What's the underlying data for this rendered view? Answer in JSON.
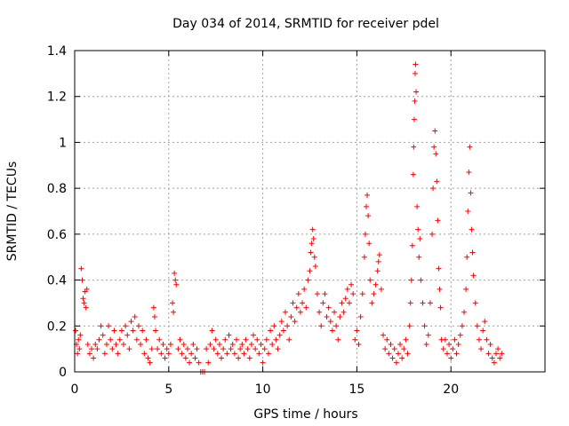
{
  "chart_data": {
    "type": "scatter",
    "title": "Day 034 of 2014, SRMTID for receiver pdel",
    "xlabel": "GPS time / hours",
    "ylabel": "SRMTID / TECUs",
    "xlim": [
      0,
      25
    ],
    "ylim": [
      0,
      1.4
    ],
    "xticks": [
      0,
      5,
      10,
      15,
      20
    ],
    "xtick_labels": [
      "0",
      "5",
      "10",
      "15",
      "20"
    ],
    "yticks": [
      0,
      0.2,
      0.4,
      0.6,
      0.8,
      1.0,
      1.2,
      1.4
    ],
    "ytick_labels": [
      "0",
      "0.2",
      "0.4",
      "0.6",
      "0.8",
      "1",
      "1.2",
      "1.4"
    ],
    "grid": true,
    "marker": "plus",
    "series": [
      {
        "name": "SRMTID",
        "color": "#ff0000",
        "points": [
          [
            0.05,
            0.18
          ],
          [
            0.1,
            0.12
          ],
          [
            0.15,
            0.08
          ],
          [
            0.2,
            0.14
          ],
          [
            0.25,
            0.1
          ],
          [
            0.3,
            0.16
          ],
          [
            0.35,
            0.45
          ],
          [
            0.4,
            0.4
          ],
          [
            0.45,
            0.32
          ],
          [
            0.5,
            0.3
          ],
          [
            0.55,
            0.35
          ],
          [
            0.6,
            0.28
          ],
          [
            0.65,
            0.36
          ],
          [
            0.7,
            0.12
          ],
          [
            0.8,
            0.08
          ],
          [
            0.9,
            0.1
          ],
          [
            1.0,
            0.06
          ],
          [
            1.1,
            0.12
          ],
          [
            1.2,
            0.1
          ],
          [
            1.3,
            0.14
          ],
          [
            1.4,
            0.2
          ],
          [
            1.5,
            0.16
          ],
          [
            1.6,
            0.08
          ],
          [
            1.7,
            0.12
          ],
          [
            1.8,
            0.2
          ],
          [
            1.9,
            0.14
          ],
          [
            2.0,
            0.1
          ],
          [
            2.1,
            0.18
          ],
          [
            2.2,
            0.12
          ],
          [
            2.3,
            0.08
          ],
          [
            2.4,
            0.14
          ],
          [
            2.5,
            0.18
          ],
          [
            2.6,
            0.12
          ],
          [
            2.7,
            0.2
          ],
          [
            2.8,
            0.16
          ],
          [
            2.9,
            0.1
          ],
          [
            3.0,
            0.22
          ],
          [
            3.1,
            0.18
          ],
          [
            3.2,
            0.24
          ],
          [
            3.3,
            0.14
          ],
          [
            3.4,
            0.2
          ],
          [
            3.5,
            0.12
          ],
          [
            3.6,
            0.18
          ],
          [
            3.7,
            0.08
          ],
          [
            3.8,
            0.14
          ],
          [
            3.9,
            0.06
          ],
          [
            4.0,
            0.04
          ],
          [
            4.1,
            0.1
          ],
          [
            4.2,
            0.28
          ],
          [
            4.25,
            0.24
          ],
          [
            4.3,
            0.18
          ],
          [
            4.4,
            0.1
          ],
          [
            4.5,
            0.14
          ],
          [
            4.6,
            0.08
          ],
          [
            4.7,
            0.12
          ],
          [
            4.8,
            0.06
          ],
          [
            4.9,
            0.1
          ],
          [
            5.0,
            0.08
          ],
          [
            5.1,
            0.12
          ],
          [
            5.2,
            0.3
          ],
          [
            5.25,
            0.26
          ],
          [
            5.3,
            0.43
          ],
          [
            5.35,
            0.4
          ],
          [
            5.4,
            0.38
          ],
          [
            5.5,
            0.1
          ],
          [
            5.6,
            0.14
          ],
          [
            5.7,
            0.08
          ],
          [
            5.8,
            0.12
          ],
          [
            5.9,
            0.06
          ],
          [
            6.0,
            0.1
          ],
          [
            6.1,
            0.04
          ],
          [
            6.2,
            0.08
          ],
          [
            6.3,
            0.12
          ],
          [
            6.4,
            0.06
          ],
          [
            6.5,
            0.1
          ],
          [
            6.6,
            0.04
          ],
          [
            6.7,
            0.0
          ],
          [
            6.8,
            0.0
          ],
          [
            6.9,
            0.0
          ],
          [
            7.0,
            0.1
          ],
          [
            7.1,
            0.04
          ],
          [
            7.2,
            0.12
          ],
          [
            7.3,
            0.18
          ],
          [
            7.4,
            0.1
          ],
          [
            7.5,
            0.14
          ],
          [
            7.6,
            0.08
          ],
          [
            7.7,
            0.12
          ],
          [
            7.8,
            0.06
          ],
          [
            7.9,
            0.1
          ],
          [
            8.0,
            0.14
          ],
          [
            8.1,
            0.08
          ],
          [
            8.2,
            0.16
          ],
          [
            8.3,
            0.1
          ],
          [
            8.4,
            0.12
          ],
          [
            8.5,
            0.08
          ],
          [
            8.6,
            0.14
          ],
          [
            8.7,
            0.06
          ],
          [
            8.8,
            0.1
          ],
          [
            8.9,
            0.12
          ],
          [
            9.0,
            0.08
          ],
          [
            9.1,
            0.14
          ],
          [
            9.2,
            0.1
          ],
          [
            9.3,
            0.06
          ],
          [
            9.4,
            0.12
          ],
          [
            9.5,
            0.16
          ],
          [
            9.6,
            0.1
          ],
          [
            9.7,
            0.14
          ],
          [
            9.8,
            0.08
          ],
          [
            9.9,
            0.12
          ],
          [
            10.0,
            0.04
          ],
          [
            10.1,
            0.1
          ],
          [
            10.2,
            0.14
          ],
          [
            10.3,
            0.08
          ],
          [
            10.4,
            0.18
          ],
          [
            10.5,
            0.12
          ],
          [
            10.6,
            0.2
          ],
          [
            10.7,
            0.14
          ],
          [
            10.8,
            0.1
          ],
          [
            10.9,
            0.16
          ],
          [
            11.0,
            0.22
          ],
          [
            11.1,
            0.18
          ],
          [
            11.2,
            0.26
          ],
          [
            11.3,
            0.2
          ],
          [
            11.4,
            0.14
          ],
          [
            11.5,
            0.24
          ],
          [
            11.6,
            0.3
          ],
          [
            11.7,
            0.22
          ],
          [
            11.8,
            0.28
          ],
          [
            11.9,
            0.34
          ],
          [
            12.0,
            0.26
          ],
          [
            12.1,
            0.3
          ],
          [
            12.2,
            0.36
          ],
          [
            12.3,
            0.28
          ],
          [
            12.4,
            0.4
          ],
          [
            12.5,
            0.44
          ],
          [
            12.55,
            0.52
          ],
          [
            12.6,
            0.56
          ],
          [
            12.65,
            0.62
          ],
          [
            12.7,
            0.58
          ],
          [
            12.75,
            0.5
          ],
          [
            12.8,
            0.46
          ],
          [
            12.9,
            0.34
          ],
          [
            13.0,
            0.26
          ],
          [
            13.1,
            0.2
          ],
          [
            13.2,
            0.3
          ],
          [
            13.3,
            0.34
          ],
          [
            13.4,
            0.24
          ],
          [
            13.5,
            0.28
          ],
          [
            13.6,
            0.22
          ],
          [
            13.7,
            0.18
          ],
          [
            13.8,
            0.26
          ],
          [
            13.9,
            0.2
          ],
          [
            14.0,
            0.14
          ],
          [
            14.1,
            0.24
          ],
          [
            14.2,
            0.3
          ],
          [
            14.3,
            0.26
          ],
          [
            14.4,
            0.32
          ],
          [
            14.5,
            0.36
          ],
          [
            14.6,
            0.3
          ],
          [
            14.7,
            0.38
          ],
          [
            14.8,
            0.34
          ],
          [
            14.9,
            0.14
          ],
          [
            15.0,
            0.18
          ],
          [
            15.1,
            0.12
          ],
          [
            15.2,
            0.24
          ],
          [
            15.3,
            0.34
          ],
          [
            15.4,
            0.5
          ],
          [
            15.45,
            0.6
          ],
          [
            15.5,
            0.72
          ],
          [
            15.55,
            0.77
          ],
          [
            15.6,
            0.68
          ],
          [
            15.65,
            0.56
          ],
          [
            15.7,
            0.4
          ],
          [
            15.8,
            0.3
          ],
          [
            15.9,
            0.34
          ],
          [
            16.0,
            0.38
          ],
          [
            16.1,
            0.44
          ],
          [
            16.15,
            0.48
          ],
          [
            16.2,
            0.51
          ],
          [
            16.3,
            0.36
          ],
          [
            16.4,
            0.16
          ],
          [
            16.5,
            0.1
          ],
          [
            16.6,
            0.14
          ],
          [
            16.7,
            0.08
          ],
          [
            16.8,
            0.12
          ],
          [
            16.9,
            0.06
          ],
          [
            17.0,
            0.1
          ],
          [
            17.1,
            0.04
          ],
          [
            17.2,
            0.08
          ],
          [
            17.3,
            0.12
          ],
          [
            17.4,
            0.06
          ],
          [
            17.5,
            0.1
          ],
          [
            17.6,
            0.14
          ],
          [
            17.7,
            0.08
          ],
          [
            17.8,
            0.2
          ],
          [
            17.85,
            0.3
          ],
          [
            17.9,
            0.4
          ],
          [
            17.95,
            0.55
          ],
          [
            18.0,
            0.86
          ],
          [
            18.02,
            0.98
          ],
          [
            18.05,
            1.1
          ],
          [
            18.08,
            1.18
          ],
          [
            18.1,
            1.3
          ],
          [
            18.12,
            1.34
          ],
          [
            18.15,
            1.22
          ],
          [
            18.2,
            0.72
          ],
          [
            18.25,
            0.62
          ],
          [
            18.3,
            0.5
          ],
          [
            18.35,
            0.58
          ],
          [
            18.4,
            0.4
          ],
          [
            18.5,
            0.3
          ],
          [
            18.6,
            0.2
          ],
          [
            18.7,
            0.12
          ],
          [
            18.8,
            0.16
          ],
          [
            18.9,
            0.3
          ],
          [
            19.0,
            0.6
          ],
          [
            19.05,
            0.8
          ],
          [
            19.1,
            0.98
          ],
          [
            19.15,
            1.05
          ],
          [
            19.2,
            0.95
          ],
          [
            19.25,
            0.83
          ],
          [
            19.3,
            0.66
          ],
          [
            19.35,
            0.45
          ],
          [
            19.4,
            0.36
          ],
          [
            19.45,
            0.28
          ],
          [
            19.5,
            0.14
          ],
          [
            19.6,
            0.1
          ],
          [
            19.7,
            0.14
          ],
          [
            19.8,
            0.08
          ],
          [
            19.9,
            0.12
          ],
          [
            20.0,
            0.06
          ],
          [
            20.1,
            0.1
          ],
          [
            20.2,
            0.14
          ],
          [
            20.3,
            0.08
          ],
          [
            20.4,
            0.12
          ],
          [
            20.5,
            0.16
          ],
          [
            20.6,
            0.2
          ],
          [
            20.7,
            0.26
          ],
          [
            20.8,
            0.36
          ],
          [
            20.85,
            0.5
          ],
          [
            20.9,
            0.7
          ],
          [
            20.95,
            0.87
          ],
          [
            21.0,
            0.98
          ],
          [
            21.05,
            0.78
          ],
          [
            21.1,
            0.62
          ],
          [
            21.15,
            0.52
          ],
          [
            21.2,
            0.42
          ],
          [
            21.3,
            0.3
          ],
          [
            21.4,
            0.2
          ],
          [
            21.5,
            0.14
          ],
          [
            21.6,
            0.1
          ],
          [
            21.7,
            0.18
          ],
          [
            21.8,
            0.22
          ],
          [
            21.9,
            0.14
          ],
          [
            22.0,
            0.08
          ],
          [
            22.1,
            0.12
          ],
          [
            22.2,
            0.06
          ],
          [
            22.3,
            0.04
          ],
          [
            22.4,
            0.08
          ],
          [
            22.5,
            0.1
          ],
          [
            22.6,
            0.06
          ],
          [
            22.7,
            0.08
          ]
        ]
      }
    ]
  }
}
